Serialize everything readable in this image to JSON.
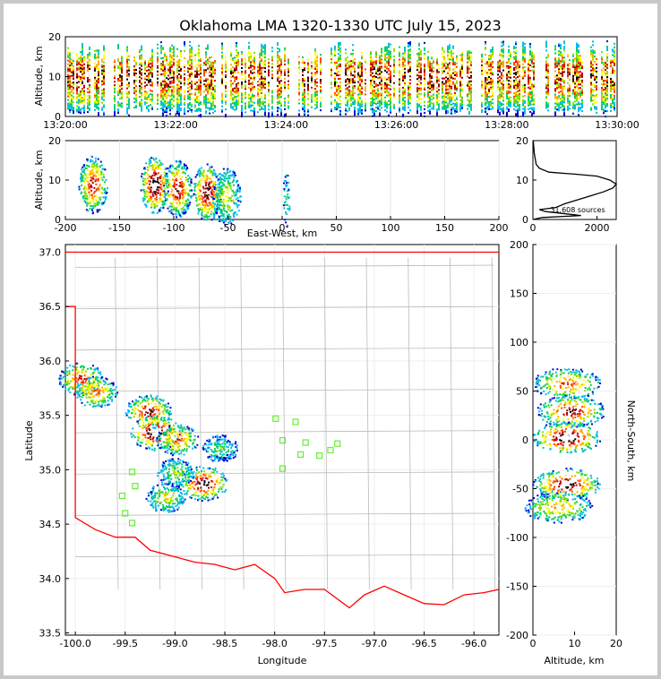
{
  "title": "Oklahoma LMA 1320-1330 UTC July 15, 2023",
  "colors": {
    "border_state": "#ff0000",
    "county_lines": "#bbbbbb",
    "stations": "#66ee33",
    "profile_line": "#000000"
  },
  "palette": [
    "#0000cc",
    "#00bbee",
    "#00cc66",
    "#88dd00",
    "#ffff00",
    "#ffaa00",
    "#ff4400",
    "#cc0000",
    "#880000",
    "#000000",
    "#ffffff"
  ],
  "time_height": {
    "ylabel": "Altitude, km",
    "y_ticks": [
      "0",
      "10",
      "20"
    ],
    "x_ticks": [
      "13:20:00",
      "13:22:00",
      "13:24:00",
      "13:26:00",
      "13:28:00",
      "13:30:00"
    ],
    "ylim": [
      0,
      20
    ]
  },
  "ew_alt": {
    "xlabel": "East-West, km",
    "ylabel": "Altitude, km",
    "x_ticks": [
      "-200",
      "-150",
      "-100",
      "-50",
      "0",
      "50",
      "100",
      "150",
      "200"
    ],
    "y_ticks": [
      "0",
      "10",
      "20"
    ],
    "xlim": [
      -200,
      200
    ],
    "ylim": [
      0,
      20
    ],
    "clusters": [
      {
        "x": -175,
        "y": 9,
        "density": 0.75
      },
      {
        "x": -118,
        "y": 9,
        "density": 1.0
      },
      {
        "x": -97,
        "y": 8,
        "density": 0.8
      },
      {
        "x": -70,
        "y": 7,
        "density": 0.9
      },
      {
        "x": -52,
        "y": 6,
        "density": 0.35
      },
      {
        "x": 3,
        "y": 5,
        "density": 0.2
      }
    ]
  },
  "histogram": {
    "label": "31,608 sources",
    "x_ticks": [
      "0",
      "2000"
    ],
    "y_ticks": [
      "0",
      "10",
      "20"
    ],
    "xlim": [
      0,
      2600
    ],
    "ylim": [
      0,
      20
    ],
    "profile": [
      [
        0,
        0
      ],
      [
        300,
        0.5
      ],
      [
        1500,
        1
      ],
      [
        400,
        2
      ],
      [
        200,
        2.5
      ],
      [
        700,
        3
      ],
      [
        1000,
        4
      ],
      [
        1400,
        5
      ],
      [
        1800,
        6
      ],
      [
        2200,
        7
      ],
      [
        2500,
        8
      ],
      [
        2600,
        9
      ],
      [
        2400,
        10
      ],
      [
        2000,
        11
      ],
      [
        1300,
        11.5
      ],
      [
        500,
        12
      ],
      [
        200,
        13
      ],
      [
        100,
        14
      ],
      [
        80,
        15
      ],
      [
        60,
        16
      ],
      [
        40,
        17
      ],
      [
        30,
        18
      ],
      [
        20,
        19
      ],
      [
        10,
        20
      ]
    ]
  },
  "plan_view": {
    "xlabel": "Longitude",
    "ylabel": "Latitude",
    "x_ticks": [
      "-100.0",
      "-99.5",
      "-99.0",
      "-98.5",
      "-98.0",
      "-97.5",
      "-97.0",
      "-96.5",
      "-96.0"
    ],
    "y_ticks": [
      "33.5",
      "34.0",
      "34.5",
      "35.0",
      "35.5",
      "36.0",
      "36.5",
      "37.0"
    ],
    "xlim": [
      -100.1,
      -95.75
    ],
    "ylim": [
      33.48,
      37.07
    ],
    "clusters": [
      {
        "lon": -99.95,
        "lat": 35.84,
        "density": 0.7
      },
      {
        "lon": -99.8,
        "lat": 35.72,
        "density": 0.6
      },
      {
        "lon": -99.27,
        "lat": 35.54,
        "density": 0.8
      },
      {
        "lon": -99.2,
        "lat": 35.35,
        "density": 1.0
      },
      {
        "lon": -98.98,
        "lat": 35.28,
        "density": 0.6
      },
      {
        "lon": -98.72,
        "lat": 34.88,
        "density": 0.9
      },
      {
        "lon": -99.1,
        "lat": 34.75,
        "density": 0.4
      },
      {
        "lon": -98.55,
        "lat": 35.2,
        "density": 0.2
      },
      {
        "lon": -99.0,
        "lat": 34.98,
        "density": 0.3
      }
    ],
    "stations": [
      [
        -97.99,
        35.47
      ],
      [
        -97.79,
        35.44
      ],
      [
        -97.92,
        35.27
      ],
      [
        -97.69,
        35.25
      ],
      [
        -97.37,
        35.24
      ],
      [
        -97.44,
        35.18
      ],
      [
        -97.55,
        35.13
      ],
      [
        -97.74,
        35.14
      ],
      [
        -97.92,
        35.01
      ],
      [
        -99.43,
        34.98
      ],
      [
        -99.4,
        34.85
      ],
      [
        -99.53,
        34.76
      ],
      [
        -99.5,
        34.6
      ],
      [
        -99.43,
        34.51
      ]
    ]
  },
  "ns_alt": {
    "xlabel": "Altitude, km",
    "ylabel": "North-South, km",
    "x_ticks": [
      "0",
      "10",
      "20"
    ],
    "y_ticks": [
      "200",
      "150",
      "100",
      "50",
      "0",
      "-50",
      "-100",
      "-150",
      "-200"
    ],
    "xlim": [
      0,
      20
    ],
    "ylim": [
      -200,
      200
    ],
    "clusters": [
      {
        "y": 58,
        "x": 8,
        "density": 0.6
      },
      {
        "y": 30,
        "x": 9,
        "density": 0.8
      },
      {
        "y": 3,
        "x": 8,
        "density": 1.0
      },
      {
        "y": -45,
        "x": 8,
        "density": 0.9
      },
      {
        "y": -68,
        "x": 6,
        "density": 0.5
      }
    ]
  }
}
